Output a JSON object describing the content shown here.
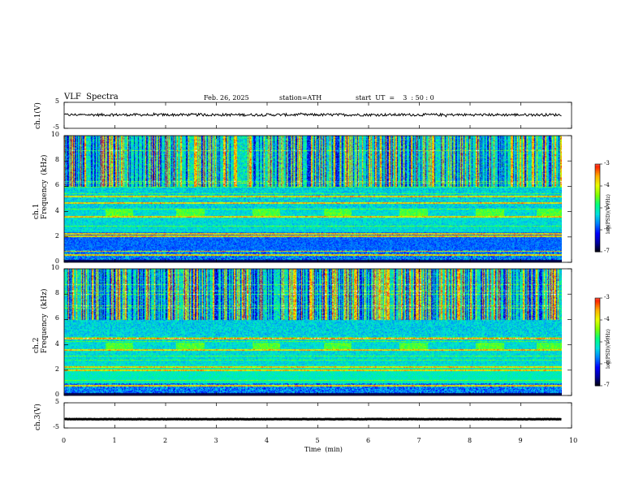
{
  "header": {
    "title": "VLF  Spectra",
    "date": "Feb. 26, 2025",
    "station": "station=ATH",
    "start": "start  UT  =    3  : 50 : 0"
  },
  "colors": {
    "background": "#ffffff",
    "trace": "#000000",
    "colormap": [
      "#000000",
      "#0000a0",
      "#0000ff",
      "#0080ff",
      "#00e0e0",
      "#00ff80",
      "#80ff00",
      "#e8ff00",
      "#ffb000",
      "#ff2000",
      "#ffffff"
    ]
  },
  "chart_data": [
    {
      "type": "line",
      "name": "ch1-waveform",
      "ylabel": "ch.1(V)",
      "ylim": [
        -5,
        5
      ],
      "yticks": [
        "5",
        "-5"
      ],
      "xlim": [
        0,
        10
      ],
      "mean_level": 0.2,
      "amplitude": 1.0
    },
    {
      "type": "heatmap",
      "name": "ch1-spectrogram",
      "ylabel": "ch.1\nFrequency  (kHz)",
      "ylim": [
        0,
        10
      ],
      "yticks": [
        "0",
        "2",
        "4",
        "6",
        "8",
        "10"
      ],
      "xlim": [
        0,
        10
      ],
      "data_end_min": 9.8,
      "colorbar": {
        "label": "log(PSD)(V²/Hz)",
        "range": [
          -7,
          -3
        ],
        "ticks": [
          "-3",
          "-4",
          "-5",
          "-6",
          "-7"
        ]
      },
      "bursts_min": [
        0.8,
        2.2,
        3.7,
        5.1,
        6.6,
        8.1,
        9.3
      ],
      "burst_band_khz": [
        3.6,
        4.2
      ],
      "line_features_khz": [
        0.6,
        0.9,
        2.1,
        2.3,
        3.6,
        4.7,
        5.2
      ]
    },
    {
      "type": "heatmap",
      "name": "ch2-spectrogram",
      "ylabel": "ch.2\nFrequency  (kHz)",
      "ylim": [
        0,
        10
      ],
      "yticks": [
        "0",
        "2",
        "4",
        "6",
        "8",
        "10"
      ],
      "xlim": [
        0,
        10
      ],
      "data_end_min": 9.8,
      "colorbar": {
        "label": "log(PSD)(V²/Hz)",
        "range": [
          -7,
          -3
        ],
        "ticks": [
          "-3",
          "-4",
          "-5",
          "-6",
          "-7"
        ]
      },
      "bursts_min": [
        0.8,
        2.2,
        3.7,
        5.1,
        6.6,
        8.1,
        9.3
      ],
      "burst_band_khz": [
        3.6,
        4.2
      ],
      "line_features_khz": [
        0.8,
        2.0,
        2.3,
        3.6,
        4.5
      ]
    },
    {
      "type": "line",
      "name": "ch3-waveform",
      "ylabel": "ch.3(V)",
      "ylim": [
        -5,
        5
      ],
      "yticks": [
        "5",
        "-5"
      ],
      "xlim": [
        0,
        10
      ],
      "mean_level": -1.5,
      "amplitude": 0.15
    }
  ],
  "xaxis": {
    "label": "Time  (min)",
    "ticks": [
      "0",
      "1",
      "2",
      "3",
      "4",
      "5",
      "6",
      "7",
      "8",
      "9",
      "10"
    ]
  }
}
